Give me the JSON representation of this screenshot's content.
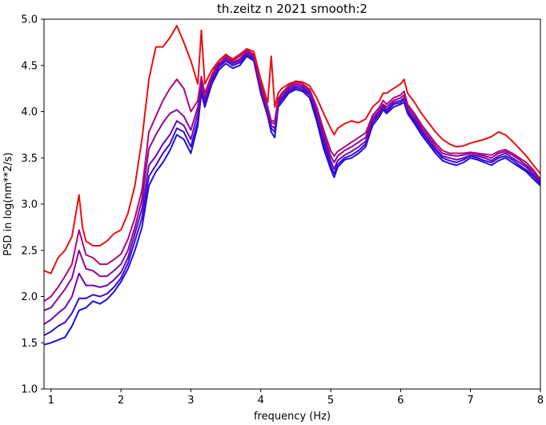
{
  "chart_data": {
    "type": "line",
    "title": "th.zeitz n 2021 smooth:2",
    "xlabel": "frequency (Hz)",
    "ylabel": "PSD in log(nm**2/s)",
    "xlim": [
      0.9,
      8.0
    ],
    "ylim": [
      1.0,
      5.0
    ],
    "xticks": [
      1,
      2,
      3,
      4,
      5,
      6,
      7,
      8
    ],
    "yticks": [
      1.0,
      1.5,
      2.0,
      2.5,
      3.0,
      3.5,
      4.0,
      4.5,
      5.0
    ],
    "grid": false,
    "series": [
      {
        "color": "#1a0ee8",
        "x": [
          0.9,
          1.0,
          1.1,
          1.2,
          1.3,
          1.4,
          1.5,
          1.6,
          1.7,
          1.8,
          1.9,
          2.0,
          2.1,
          2.2,
          2.3,
          2.4,
          2.5,
          2.6,
          2.7,
          2.8,
          2.9,
          3.0,
          3.1,
          3.15,
          3.2,
          3.3,
          3.4,
          3.5,
          3.6,
          3.7,
          3.8,
          3.9,
          4.0,
          4.1,
          4.15,
          4.2,
          4.25,
          4.3,
          4.4,
          4.5,
          4.6,
          4.7,
          4.8,
          4.9,
          5.0,
          5.05,
          5.1,
          5.2,
          5.3,
          5.4,
          5.5,
          5.6,
          5.7,
          5.75,
          5.8,
          5.9,
          6.0,
          6.05,
          6.1,
          6.2,
          6.3,
          6.4,
          6.5,
          6.6,
          6.7,
          6.8,
          6.9,
          7.0,
          7.1,
          7.2,
          7.3,
          7.4,
          7.5,
          7.6,
          7.7,
          7.8,
          7.9,
          8.0
        ],
        "y": [
          1.48,
          1.5,
          1.53,
          1.56,
          1.68,
          1.85,
          1.88,
          1.95,
          1.92,
          1.97,
          2.05,
          2.16,
          2.3,
          2.5,
          2.75,
          3.2,
          3.35,
          3.45,
          3.58,
          3.75,
          3.7,
          3.55,
          3.85,
          4.2,
          4.05,
          4.3,
          4.45,
          4.52,
          4.47,
          4.5,
          4.6,
          4.55,
          4.2,
          3.95,
          3.78,
          3.72,
          4.05,
          4.1,
          4.2,
          4.24,
          4.22,
          4.15,
          3.9,
          3.6,
          3.38,
          3.29,
          3.4,
          3.48,
          3.5,
          3.55,
          3.62,
          3.85,
          3.95,
          4.02,
          3.98,
          4.05,
          4.08,
          4.1,
          3.98,
          3.87,
          3.75,
          3.65,
          3.55,
          3.47,
          3.44,
          3.42,
          3.45,
          3.5,
          3.48,
          3.45,
          3.42,
          3.47,
          3.5,
          3.45,
          3.4,
          3.35,
          3.27,
          3.2
        ]
      },
      {
        "color": "#3a0ad0",
        "x": [
          0.9,
          1.0,
          1.1,
          1.2,
          1.3,
          1.4,
          1.5,
          1.6,
          1.7,
          1.8,
          1.9,
          2.0,
          2.1,
          2.2,
          2.3,
          2.4,
          2.5,
          2.6,
          2.7,
          2.8,
          2.9,
          3.0,
          3.1,
          3.15,
          3.2,
          3.3,
          3.4,
          3.5,
          3.6,
          3.7,
          3.8,
          3.9,
          4.0,
          4.1,
          4.15,
          4.2,
          4.25,
          4.3,
          4.4,
          4.5,
          4.6,
          4.7,
          4.8,
          4.9,
          5.0,
          5.05,
          5.1,
          5.2,
          5.3,
          5.4,
          5.5,
          5.6,
          5.7,
          5.75,
          5.8,
          5.9,
          6.0,
          6.05,
          6.1,
          6.2,
          6.3,
          6.4,
          6.5,
          6.6,
          6.7,
          6.8,
          6.9,
          7.0,
          7.1,
          7.2,
          7.3,
          7.4,
          7.5,
          7.6,
          7.7,
          7.8,
          7.9,
          8.0
        ],
        "y": [
          1.58,
          1.62,
          1.68,
          1.72,
          1.82,
          1.98,
          1.98,
          2.02,
          2.0,
          2.03,
          2.1,
          2.2,
          2.36,
          2.6,
          2.85,
          3.3,
          3.42,
          3.55,
          3.65,
          3.82,
          3.78,
          3.62,
          3.9,
          4.25,
          4.08,
          4.32,
          4.48,
          4.55,
          4.5,
          4.53,
          4.62,
          4.57,
          4.22,
          3.98,
          3.82,
          3.78,
          4.08,
          4.13,
          4.22,
          4.26,
          4.24,
          4.18,
          3.95,
          3.65,
          3.42,
          3.33,
          3.43,
          3.5,
          3.53,
          3.58,
          3.65,
          3.88,
          3.98,
          4.05,
          4.0,
          4.08,
          4.1,
          4.13,
          4.0,
          3.9,
          3.78,
          3.68,
          3.58,
          3.5,
          3.47,
          3.45,
          3.48,
          3.52,
          3.5,
          3.47,
          3.45,
          3.5,
          3.52,
          3.48,
          3.42,
          3.37,
          3.3,
          3.22
        ]
      },
      {
        "color": "#6a08b8",
        "x": [
          0.9,
          1.0,
          1.1,
          1.2,
          1.3,
          1.4,
          1.5,
          1.6,
          1.7,
          1.8,
          1.9,
          2.0,
          2.1,
          2.2,
          2.3,
          2.4,
          2.5,
          2.6,
          2.7,
          2.8,
          2.9,
          3.0,
          3.1,
          3.15,
          3.2,
          3.3,
          3.4,
          3.5,
          3.6,
          3.7,
          3.8,
          3.9,
          4.0,
          4.1,
          4.15,
          4.2,
          4.25,
          4.3,
          4.4,
          4.5,
          4.6,
          4.7,
          4.8,
          4.9,
          5.0,
          5.05,
          5.1,
          5.2,
          5.3,
          5.4,
          5.5,
          5.6,
          5.7,
          5.75,
          5.8,
          5.9,
          6.0,
          6.05,
          6.1,
          6.2,
          6.3,
          6.4,
          6.5,
          6.6,
          6.7,
          6.8,
          6.9,
          7.0,
          7.1,
          7.2,
          7.3,
          7.4,
          7.5,
          7.6,
          7.7,
          7.8,
          7.9,
          8.0
        ],
        "y": [
          1.7,
          1.75,
          1.82,
          1.88,
          2.0,
          2.25,
          2.12,
          2.12,
          2.1,
          2.12,
          2.18,
          2.26,
          2.42,
          2.68,
          2.95,
          3.42,
          3.52,
          3.65,
          3.75,
          3.9,
          3.85,
          3.7,
          3.98,
          4.3,
          4.12,
          4.35,
          4.5,
          4.57,
          4.52,
          4.55,
          4.63,
          4.58,
          4.25,
          4.0,
          3.85,
          3.82,
          4.1,
          4.15,
          4.24,
          4.28,
          4.26,
          4.2,
          3.98,
          3.7,
          3.47,
          3.38,
          3.47,
          3.53,
          3.57,
          3.62,
          3.68,
          3.9,
          4.0,
          4.07,
          4.02,
          4.1,
          4.12,
          4.15,
          4.02,
          3.92,
          3.8,
          3.7,
          3.6,
          3.52,
          3.5,
          3.48,
          3.5,
          3.53,
          3.52,
          3.5,
          3.47,
          3.52,
          3.55,
          3.5,
          3.45,
          3.4,
          3.32,
          3.23
        ]
      },
      {
        "color": "#8a0898",
        "x": [
          0.9,
          1.0,
          1.1,
          1.2,
          1.3,
          1.4,
          1.5,
          1.6,
          1.7,
          1.8,
          1.9,
          2.0,
          2.1,
          2.2,
          2.3,
          2.4,
          2.5,
          2.6,
          2.7,
          2.8,
          2.9,
          3.0,
          3.1,
          3.15,
          3.2,
          3.3,
          3.4,
          3.5,
          3.6,
          3.7,
          3.8,
          3.9,
          4.0,
          4.1,
          4.15,
          4.2,
          4.25,
          4.3,
          4.4,
          4.5,
          4.6,
          4.7,
          4.8,
          4.9,
          5.0,
          5.05,
          5.1,
          5.2,
          5.3,
          5.4,
          5.5,
          5.6,
          5.7,
          5.75,
          5.8,
          5.9,
          6.0,
          6.05,
          6.1,
          6.2,
          6.3,
          6.4,
          6.5,
          6.6,
          6.7,
          6.8,
          6.9,
          7.0,
          7.1,
          7.2,
          7.3,
          7.4,
          7.5,
          7.6,
          7.7,
          7.8,
          7.9,
          8.0
        ],
        "y": [
          1.85,
          1.88,
          1.98,
          2.08,
          2.2,
          2.5,
          2.3,
          2.28,
          2.22,
          2.22,
          2.28,
          2.35,
          2.5,
          2.75,
          3.05,
          3.6,
          3.75,
          3.88,
          3.98,
          4.02,
          3.95,
          3.8,
          4.05,
          4.32,
          4.15,
          4.38,
          4.52,
          4.58,
          4.53,
          4.57,
          4.65,
          4.6,
          4.28,
          4.03,
          3.88,
          3.87,
          4.12,
          4.18,
          4.26,
          4.3,
          4.28,
          4.22,
          4.02,
          3.75,
          3.52,
          3.45,
          3.52,
          3.58,
          3.62,
          3.67,
          3.72,
          3.93,
          4.02,
          4.08,
          4.05,
          4.12,
          4.15,
          4.18,
          4.05,
          3.95,
          3.83,
          3.73,
          3.63,
          3.55,
          3.53,
          3.52,
          3.53,
          3.55,
          3.54,
          3.52,
          3.5,
          3.55,
          3.57,
          3.53,
          3.48,
          3.42,
          3.35,
          3.25
        ]
      },
      {
        "color": "#b0087a",
        "x": [
          0.9,
          1.0,
          1.1,
          1.2,
          1.3,
          1.4,
          1.5,
          1.6,
          1.7,
          1.8,
          1.9,
          2.0,
          2.1,
          2.2,
          2.3,
          2.4,
          2.5,
          2.6,
          2.7,
          2.8,
          2.9,
          3.0,
          3.1,
          3.15,
          3.2,
          3.3,
          3.4,
          3.5,
          3.6,
          3.7,
          3.8,
          3.9,
          4.0,
          4.1,
          4.15,
          4.2,
          4.25,
          4.3,
          4.4,
          4.5,
          4.6,
          4.7,
          4.8,
          4.9,
          5.0,
          5.05,
          5.1,
          5.2,
          5.3,
          5.4,
          5.5,
          5.6,
          5.7,
          5.75,
          5.8,
          5.9,
          6.0,
          6.05,
          6.1,
          6.2,
          6.3,
          6.4,
          6.5,
          6.6,
          6.7,
          6.8,
          6.9,
          7.0,
          7.1,
          7.2,
          7.3,
          7.4,
          7.5,
          7.6,
          7.7,
          7.8,
          7.9,
          8.0
        ],
        "y": [
          1.95,
          2.0,
          2.1,
          2.22,
          2.35,
          2.72,
          2.45,
          2.42,
          2.35,
          2.35,
          2.4,
          2.46,
          2.62,
          2.85,
          3.15,
          3.78,
          3.95,
          4.12,
          4.25,
          4.35,
          4.25,
          4.0,
          4.12,
          4.38,
          4.2,
          4.4,
          4.55,
          4.6,
          4.55,
          4.6,
          4.67,
          4.62,
          4.3,
          4.05,
          3.9,
          3.9,
          4.14,
          4.2,
          4.28,
          4.32,
          4.3,
          4.24,
          4.05,
          3.8,
          3.58,
          3.52,
          3.57,
          3.62,
          3.67,
          3.72,
          3.77,
          3.96,
          4.05,
          4.12,
          4.08,
          4.15,
          4.18,
          4.22,
          4.08,
          3.98,
          3.86,
          3.76,
          3.66,
          3.58,
          3.55,
          3.55,
          3.55,
          3.56,
          3.55,
          3.54,
          3.53,
          3.57,
          3.59,
          3.55,
          3.5,
          3.45,
          3.37,
          3.27
        ]
      },
      {
        "color": "#e81010",
        "x": [
          0.9,
          1.0,
          1.1,
          1.2,
          1.3,
          1.4,
          1.45,
          1.5,
          1.6,
          1.7,
          1.8,
          1.9,
          2.0,
          2.1,
          2.2,
          2.3,
          2.4,
          2.5,
          2.6,
          2.7,
          2.8,
          2.9,
          3.0,
          3.1,
          3.15,
          3.2,
          3.3,
          3.4,
          3.5,
          3.6,
          3.7,
          3.8,
          3.9,
          4.0,
          4.1,
          4.15,
          4.2,
          4.25,
          4.3,
          4.4,
          4.5,
          4.6,
          4.7,
          4.8,
          4.9,
          5.0,
          5.05,
          5.1,
          5.2,
          5.3,
          5.4,
          5.5,
          5.6,
          5.7,
          5.75,
          5.8,
          5.9,
          6.0,
          6.05,
          6.1,
          6.2,
          6.3,
          6.4,
          6.5,
          6.6,
          6.7,
          6.8,
          6.9,
          7.0,
          7.1,
          7.2,
          7.3,
          7.4,
          7.5,
          7.6,
          7.7,
          7.8,
          7.9,
          8.0
        ],
        "y": [
          2.28,
          2.25,
          2.42,
          2.5,
          2.65,
          3.1,
          2.75,
          2.6,
          2.55,
          2.55,
          2.6,
          2.68,
          2.72,
          2.9,
          3.2,
          3.7,
          4.35,
          4.7,
          4.7,
          4.8,
          4.93,
          4.75,
          4.55,
          4.3,
          4.88,
          4.3,
          4.45,
          4.55,
          4.62,
          4.57,
          4.62,
          4.68,
          4.65,
          4.35,
          4.1,
          4.6,
          4.05,
          4.2,
          4.25,
          4.3,
          4.33,
          4.32,
          4.28,
          4.15,
          3.98,
          3.82,
          3.75,
          3.82,
          3.87,
          3.9,
          3.88,
          3.92,
          4.05,
          4.12,
          4.2,
          4.2,
          4.25,
          4.3,
          4.35,
          4.2,
          4.1,
          3.98,
          3.88,
          3.78,
          3.7,
          3.65,
          3.62,
          3.63,
          3.66,
          3.68,
          3.7,
          3.73,
          3.78,
          3.75,
          3.68,
          3.6,
          3.52,
          3.42,
          3.33
        ]
      }
    ]
  }
}
